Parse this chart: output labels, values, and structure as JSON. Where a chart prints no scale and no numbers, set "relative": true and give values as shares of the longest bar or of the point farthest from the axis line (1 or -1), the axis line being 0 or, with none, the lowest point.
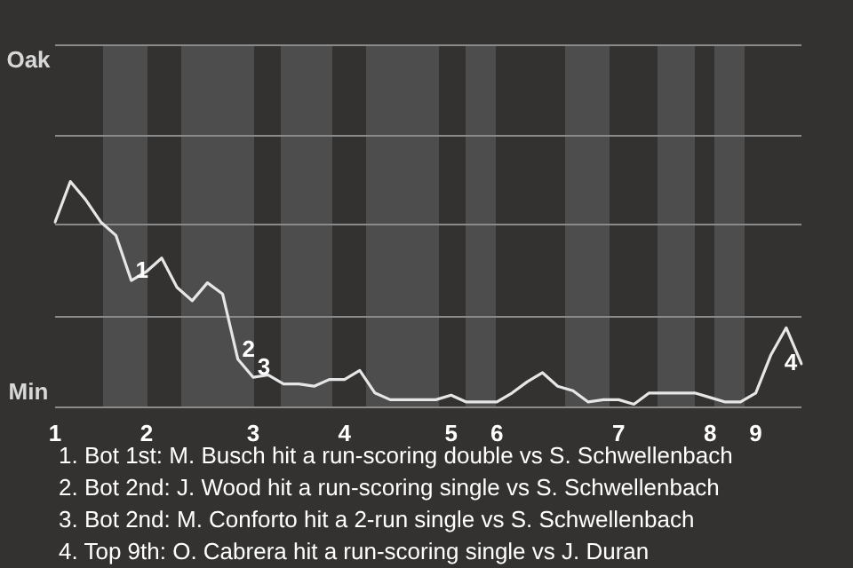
{
  "chart_data": {
    "type": "line",
    "relative": true,
    "categories": [
      "1",
      null,
      null,
      null,
      null,
      null,
      "2",
      null,
      null,
      null,
      null,
      null,
      null,
      "3",
      null,
      null,
      null,
      null,
      null,
      "4",
      null,
      null,
      null,
      null,
      null,
      null,
      "5",
      null,
      null,
      "6",
      null,
      null,
      null,
      null,
      null,
      null,
      null,
      "7",
      null,
      null,
      null,
      null,
      null,
      "8",
      null,
      null,
      "9",
      null,
      null,
      null
    ],
    "series": [
      {
        "color": "#e6e6e6",
        "values": [
          0.82,
          1,
          0.92,
          0.82,
          0.76,
          0.56,
          0.6,
          0.66,
          0.53,
          0.47,
          0.55,
          0.5,
          0.21,
          0.13,
          0.14,
          0.1,
          0.1,
          0.09,
          0.12,
          0.12,
          0.16,
          0.06,
          0.03,
          0.03,
          0.03,
          0.03,
          0.05,
          0.02,
          0.02,
          0.02,
          0.06,
          0.11,
          0.15,
          0.09,
          0.07,
          0.02,
          0.03,
          0.03,
          0.01,
          0.06,
          0.06,
          0.06,
          0.06,
          0.04,
          0.02,
          0.02,
          0.06,
          0.23,
          0.35,
          0.19
        ]
      }
    ],
    "legend": false,
    "marker": "none",
    "line_style": "solid",
    "ref_lines": [
      {
        "axis": "y",
        "value": 0.4,
        "color": "#8a8a8a"
      },
      {
        "axis": "y",
        "value": 0.81,
        "color": "#8a8a8a"
      },
      {
        "axis": "y",
        "value": 1.21,
        "color": "#8a8a8a"
      },
      {
        "axis": "y",
        "value": 1.61,
        "color": "#8a8a8a"
      },
      {
        "axis": "y",
        "value": 0,
        "color": "#8a8a8a"
      }
    ],
    "annotations": [
      "Oak",
      "Min",
      {
        "text": "1",
        "y": 0.56
      },
      {
        "text": "2",
        "y": 0.21
      },
      {
        "text": "3",
        "y": 0.13
      },
      {
        "text": "4",
        "y": 0.19
      },
      "1. Bot 1st: M. Busch hit a run-scoring double vs S. Schwellenbach",
      "2. Bot 2nd: J. Wood hit a run-scoring single vs S. Schwellenbach",
      "3. Bot 2nd: M. Conforto hit a 2-run single vs S. Schwellenbach",
      "4. Top 9th: O. Cabrera hit a run-scoring single vs J. Duran"
    ]
  }
}
